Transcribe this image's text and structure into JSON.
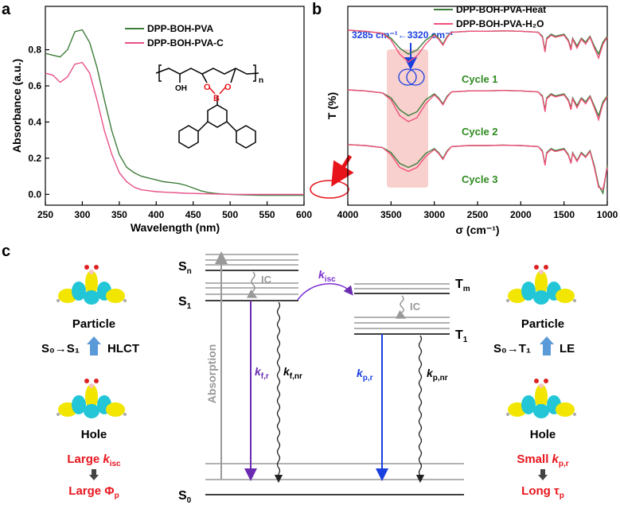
{
  "panel_labels": [
    "a",
    "b",
    "c"
  ],
  "chart_data": [
    {
      "type": "line",
      "xlabel": "Wavelength (nm)",
      "ylabel": "Absorbance (a.u.)",
      "x": [
        250,
        260,
        270,
        280,
        290,
        300,
        310,
        320,
        330,
        340,
        350,
        360,
        370,
        380,
        390,
        400,
        410,
        420,
        430,
        440,
        450,
        460,
        470,
        480,
        490,
        500,
        510,
        520,
        530,
        540,
        550,
        560,
        570,
        580,
        590,
        600
      ],
      "series": [
        {
          "name": "DPP-BOH-PVA",
          "color": "#3d7d3a",
          "values": [
            0.78,
            0.77,
            0.76,
            0.8,
            0.9,
            0.91,
            0.84,
            0.7,
            0.52,
            0.35,
            0.22,
            0.15,
            0.12,
            0.1,
            0.09,
            0.08,
            0.07,
            0.065,
            0.06,
            0.05,
            0.035,
            0.02,
            0.01,
            0.005,
            0.002,
            0,
            -0.002,
            -0.003,
            -0.004,
            -0.005,
            -0.005,
            -0.005,
            -0.005,
            -0.005,
            -0.005,
            -0.005
          ]
        },
        {
          "name": "DPP-BOH-PVA-C",
          "color": "#e8508a",
          "values": [
            0.67,
            0.66,
            0.62,
            0.65,
            0.72,
            0.73,
            0.67,
            0.52,
            0.35,
            0.22,
            0.12,
            0.07,
            0.04,
            0.025,
            0.02,
            0.015,
            0.012,
            0.01,
            0.008,
            0.006,
            0.005,
            0.004,
            0.003,
            0.002,
            0.001,
            0,
            0,
            0,
            0,
            0,
            0,
            0,
            0,
            0,
            0,
            0
          ]
        }
      ],
      "xlim": [
        250,
        600
      ],
      "xticks": [
        250,
        300,
        350,
        400,
        450,
        500,
        550,
        600
      ],
      "ylim": [
        -0.06,
        1.04
      ],
      "yticks": [
        {
          "value": 0,
          "label": "0.0"
        },
        {
          "value": 0.2,
          "label": "0.2"
        },
        {
          "value": 0.4,
          "label": "0.4"
        },
        {
          "value": 0.6,
          "label": "0.6"
        },
        {
          "value": 0.8,
          "label": "0.8"
        }
      ],
      "structure_labels": [
        "OH",
        "O",
        "B",
        "O",
        "n"
      ]
    },
    {
      "type": "line",
      "xlabel": "σ (cm⁻¹)",
      "ylabel": "T (%)",
      "annotation": "3285 cm⁻¹←3320 cm⁻¹",
      "legend": [
        {
          "name": "DPP-BOH-PVA-Heat",
          "color": "#3d7d3a"
        },
        {
          "name": "DPP-BOH-PVA-H₂O",
          "color": "#f0507a"
        }
      ],
      "x": [
        4000,
        3800,
        3600,
        3500,
        3400,
        3300,
        3200,
        3100,
        3000,
        2950,
        2900,
        2850,
        2800,
        2600,
        2400,
        2200,
        2000,
        1800,
        1750,
        1720,
        1700,
        1650,
        1600,
        1500,
        1450,
        1420,
        1400,
        1350,
        1300,
        1250,
        1200,
        1150,
        1100,
        1050,
        1000
      ],
      "cycles": [
        {
          "label": "Cycle 1",
          "series": [
            {
              "color": "#3d7d3a",
              "values": [
                88,
                87.5,
                86.5,
                84,
                79,
                76,
                78,
                83,
                86,
                84,
                81,
                85,
                87,
                87.5,
                87.5,
                87.7,
                87.5,
                87,
                85,
                78,
                84,
                86,
                85,
                86,
                83,
                79,
                84,
                80,
                84,
                82,
                85,
                80,
                76,
                82,
                85
              ]
            },
            {
              "color": "#f0507a",
              "values": [
                88,
                87.5,
                86.5,
                83,
                76,
                72,
                75,
                81,
                85.5,
                83.5,
                80.5,
                84.5,
                87,
                87.5,
                87.5,
                87.7,
                87.5,
                87,
                84.5,
                77,
                83.5,
                85.5,
                84.5,
                85.5,
                82.5,
                78,
                83.5,
                79,
                83.5,
                81,
                84.5,
                79,
                74,
                81,
                84.5
              ]
            }
          ]
        },
        {
          "label": "Cycle 2",
          "series": [
            {
              "color": "#3d7d3a",
              "values": [
                58,
                57.5,
                56.5,
                54,
                48,
                45,
                47,
                53,
                56,
                54,
                51,
                55,
                57,
                57.5,
                57.5,
                57.7,
                57.5,
                57,
                55,
                48,
                54,
                56,
                55,
                56,
                53,
                49,
                54,
                50,
                54,
                52,
                55,
                50,
                45,
                52,
                55
              ]
            },
            {
              "color": "#f0507a",
              "values": [
                58,
                57.5,
                56.5,
                53,
                45,
                42,
                44,
                51,
                55.5,
                53.5,
                50.5,
                54.5,
                57,
                57.5,
                57.5,
                57.7,
                57.5,
                57,
                54.5,
                47,
                53.5,
                55.5,
                54.5,
                55.5,
                52.5,
                48,
                53.5,
                49,
                53.5,
                51,
                54.5,
                49,
                43,
                51,
                54.5
              ]
            }
          ]
        },
        {
          "label": "Cycle 3",
          "series": [
            {
              "color": "#3d7d3a",
              "values": [
                30.5,
                30,
                29,
                26.5,
                21,
                19,
                21,
                26,
                28.5,
                26.5,
                23.5,
                27.5,
                29.5,
                30,
                30,
                30.2,
                30,
                29.5,
                27.5,
                20.5,
                26.5,
                28.5,
                27.5,
                28.5,
                25.5,
                21.5,
                26.5,
                22.5,
                26.5,
                24.5,
                27.5,
                20,
                10,
                6,
                20
              ]
            },
            {
              "color": "#f0507a",
              "values": [
                30.5,
                30,
                29,
                25.5,
                19,
                17,
                19,
                24.5,
                28,
                26,
                23,
                27,
                29.5,
                30,
                30,
                30.2,
                30,
                29.5,
                27,
                20,
                26,
                28,
                27,
                28,
                25,
                21,
                26,
                22,
                26,
                24,
                27,
                19,
                9,
                8,
                19
              ]
            }
          ]
        }
      ],
      "xlim": [
        4000,
        1000
      ],
      "xticks": [
        4000,
        3500,
        3000,
        2500,
        2000,
        1500,
        1000
      ],
      "ylim": [
        0,
        100
      ]
    }
  ],
  "diagram": {
    "energy_levels": [
      {
        "symbol": "S",
        "sub": "n"
      },
      {
        "symbol": "S",
        "sub": "1"
      },
      {
        "symbol": "S",
        "sub": "0"
      },
      {
        "symbol": "T",
        "sub": "m"
      },
      {
        "symbol": "T",
        "sub": "1"
      }
    ],
    "processes": [
      {
        "symbol": "k",
        "sub": "isc"
      },
      {
        "symbol": "k",
        "sub": "f,r"
      },
      {
        "symbol": "k",
        "sub": "f,nr"
      },
      {
        "symbol": "k",
        "sub": "p,r"
      },
      {
        "symbol": "k",
        "sub": "p,nr"
      }
    ],
    "ic_labels": [
      "IC",
      "IC"
    ],
    "absorption": "Absorption",
    "left": {
      "top": "Particle",
      "transition": "S₀→S₁",
      "kind": "HLCT",
      "bottom": "Hole",
      "result1": {
        "text": "Large ",
        "symbol": "k",
        "sub": "isc"
      },
      "result2": {
        "text": "Large ",
        "symbol": "Φ",
        "sub": "p"
      }
    },
    "right": {
      "top": "Particle",
      "transition": "S₀→T₁",
      "kind": "LE",
      "bottom": "Hole",
      "result1": {
        "text": "Small ",
        "symbol": "k",
        "sub": "p,r"
      },
      "result2": {
        "text": "Long ",
        "symbol": "τ",
        "sub": "p"
      }
    }
  }
}
